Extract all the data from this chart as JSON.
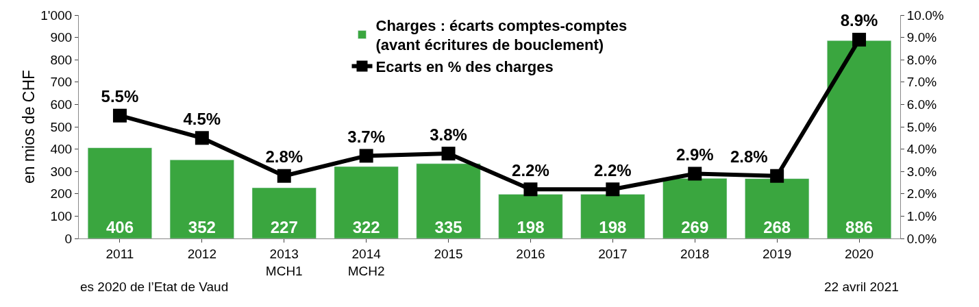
{
  "chart_data": {
    "type": "bar",
    "categories": [
      "2011",
      "2012",
      "2013\nMCH1",
      "2014\nMCH2",
      "2015",
      "2016",
      "2017",
      "2018",
      "2019",
      "2020"
    ],
    "series": [
      {
        "name": "Charges : écarts comptes-comptes\n(avant écritures de bouclement)",
        "color": "#3aa63f",
        "values": [
          406,
          352,
          227,
          322,
          335,
          198,
          198,
          269,
          268,
          886
        ],
        "value_labels": [
          "406",
          "352",
          "227",
          "322",
          "335",
          "198",
          "198",
          "269",
          "268",
          "886"
        ]
      },
      {
        "name": "Ecarts en % des charges",
        "type": "line",
        "axis": "y2",
        "color": "#000000",
        "marker": "square",
        "values": [
          5.5,
          4.5,
          2.8,
          3.7,
          3.8,
          2.2,
          2.2,
          2.9,
          2.8,
          8.9
        ],
        "value_labels": [
          "5.5%",
          "4.5%",
          "2.8%",
          "3.7%",
          "3.8%",
          "2.2%",
          "2.2%",
          "2.9%",
          "2.8%",
          "8.9%"
        ]
      }
    ],
    "ylabel": "en mios de CHF",
    "ylim": [
      0,
      1000
    ],
    "yticks": [
      0,
      100,
      200,
      300,
      400,
      500,
      600,
      700,
      800,
      900,
      {
        "value": 1000,
        "label": "1'000"
      }
    ],
    "y2lim": [
      0,
      10
    ],
    "y2ticks": [
      {
        "value": 0,
        "label": "0.0%"
      },
      {
        "value": 1,
        "label": "1.0%"
      },
      {
        "value": 2,
        "label": "2.0%"
      },
      {
        "value": 3,
        "label": "3.0%"
      },
      {
        "value": 4,
        "label": "4.0%"
      },
      {
        "value": 5,
        "label": "5.0%"
      },
      {
        "value": 6,
        "label": "6.0%"
      },
      {
        "value": 7,
        "label": "7.0%"
      },
      {
        "value": 8,
        "label": "8.0%"
      },
      {
        "value": 9,
        "label": "9.0%"
      },
      {
        "value": 10,
        "label": "10.0%"
      }
    ],
    "legend": "top",
    "annotations": [
      "es 2020 de l’Etat de Vaud",
      "22 avril 2021"
    ]
  }
}
